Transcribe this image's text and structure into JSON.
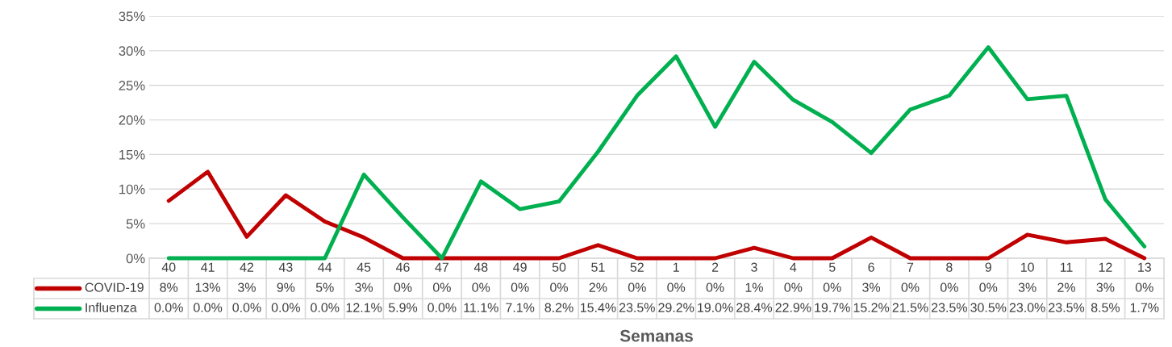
{
  "chart_data": {
    "type": "line",
    "xlabel": "Semanas",
    "categories": [
      "40",
      "41",
      "42",
      "43",
      "44",
      "45",
      "46",
      "47",
      "48",
      "49",
      "50",
      "51",
      "52",
      "1",
      "2",
      "3",
      "4",
      "5",
      "6",
      "7",
      "8",
      "9",
      "10",
      "11",
      "12",
      "13"
    ],
    "series": [
      {
        "name": "COVID-19",
        "color": "#c00000",
        "values": [
          8.3,
          12.5,
          3.1,
          9.1,
          5.3,
          3.0,
          0,
          0,
          0,
          0,
          0,
          1.9,
          0,
          0,
          0,
          1.5,
          0,
          0,
          3.0,
          0,
          0,
          0,
          3.4,
          2.3,
          2.8,
          0
        ],
        "value_labels": [
          "8%",
          "13%",
          "3%",
          "9%",
          "5%",
          "3%",
          "0%",
          "0%",
          "0%",
          "0%",
          "0%",
          "2%",
          "0%",
          "0%",
          "0%",
          "1%",
          "0%",
          "0%",
          "3%",
          "0%",
          "0%",
          "0%",
          "3%",
          "2%",
          "3%",
          "0%"
        ]
      },
      {
        "name": "Influenza",
        "color": "#00b050",
        "values": [
          0.0,
          0.0,
          0.0,
          0.0,
          0.0,
          12.1,
          5.9,
          0.0,
          11.1,
          7.1,
          8.2,
          15.4,
          23.5,
          29.2,
          19.0,
          28.4,
          22.9,
          19.7,
          15.2,
          21.5,
          23.5,
          30.5,
          23.0,
          23.5,
          8.5,
          1.7
        ],
        "value_labels": [
          "0.0%",
          "0.0%",
          "0.0%",
          "0.0%",
          "0.0%",
          "12.1%",
          "5.9%",
          "0.0%",
          "11.1%",
          "7.1%",
          "8.2%",
          "15.4%",
          "23.5%",
          "29.2%",
          "19.0%",
          "28.4%",
          "22.9%",
          "19.7%",
          "15.2%",
          "21.5%",
          "23.5%",
          "30.5%",
          "23.0%",
          "23.5%",
          "8.5%",
          "1.7%"
        ]
      }
    ],
    "ylim": [
      0,
      35
    ],
    "yticks": [
      {
        "value": 0,
        "label": "0%"
      },
      {
        "value": 5,
        "label": "5%"
      },
      {
        "value": 10,
        "label": "10%"
      },
      {
        "value": 15,
        "label": "15%"
      },
      {
        "value": 20,
        "label": "20%"
      },
      {
        "value": 25,
        "label": "25%"
      },
      {
        "value": 30,
        "label": "30%"
      },
      {
        "value": 35,
        "label": "35%"
      }
    ],
    "grid": "y",
    "legend": "bottom left",
    "marker": "none",
    "line_style": "solid"
  }
}
